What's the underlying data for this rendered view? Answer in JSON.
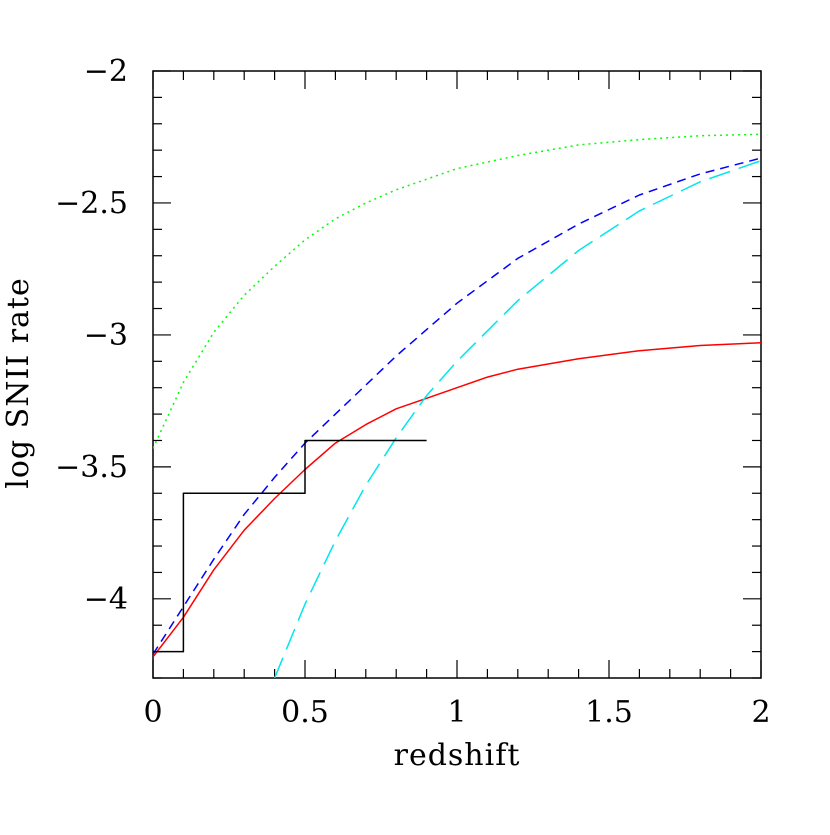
{
  "chart_data": {
    "type": "line",
    "title": "",
    "xlabel": "redshift",
    "ylabel": "log SNII rate",
    "xlim": [
      0,
      2
    ],
    "ylim": [
      -4.3,
      -2
    ],
    "xticks": [
      "0",
      "0.5",
      "1",
      "1.5",
      "2"
    ],
    "yticks": [
      "-2",
      "-2.5",
      "-3",
      "-3.5",
      "-4"
    ],
    "grid": false,
    "legend": "none",
    "series": [
      {
        "style": "solid",
        "color": "#ff0000",
        "x": [
          0,
          0.1,
          0.2,
          0.3,
          0.4,
          0.5,
          0.6,
          0.7,
          0.8,
          0.9,
          1.0,
          1.1,
          1.2,
          1.4,
          1.6,
          1.8,
          2.0
        ],
        "y": [
          -4.22,
          -4.07,
          -3.89,
          -3.74,
          -3.62,
          -3.51,
          -3.41,
          -3.34,
          -3.28,
          -3.24,
          -3.2,
          -3.16,
          -3.13,
          -3.09,
          -3.06,
          -3.04,
          -3.03
        ]
      },
      {
        "style": "dashed",
        "color": "#0000ff",
        "x": [
          0,
          0.1,
          0.2,
          0.3,
          0.4,
          0.5,
          0.6,
          0.7,
          0.8,
          0.9,
          1.0,
          1.2,
          1.4,
          1.6,
          1.8,
          2.0
        ],
        "y": [
          -4.21,
          -4.03,
          -3.85,
          -3.68,
          -3.54,
          -3.41,
          -3.3,
          -3.19,
          -3.08,
          -2.98,
          -2.88,
          -2.71,
          -2.58,
          -2.47,
          -2.39,
          -2.33
        ]
      },
      {
        "style": "dotted",
        "color": "#00ff00",
        "x": [
          0,
          0.1,
          0.2,
          0.3,
          0.4,
          0.5,
          0.6,
          0.7,
          0.8,
          0.9,
          1.0,
          1.2,
          1.4,
          1.6,
          1.8,
          2.0
        ],
        "y": [
          -3.43,
          -3.18,
          -2.99,
          -2.85,
          -2.74,
          -2.64,
          -2.56,
          -2.5,
          -2.45,
          -2.41,
          -2.37,
          -2.32,
          -2.28,
          -2.26,
          -2.245,
          -2.24
        ]
      },
      {
        "style": "long-dashed",
        "color": "#00e5ee",
        "x": [
          0.4,
          0.5,
          0.6,
          0.7,
          0.8,
          0.9,
          1.0,
          1.2,
          1.4,
          1.6,
          1.8,
          2.0
        ],
        "y": [
          -4.3,
          -4.02,
          -3.78,
          -3.57,
          -3.39,
          -3.23,
          -3.1,
          -2.87,
          -2.68,
          -2.53,
          -2.42,
          -2.34
        ]
      },
      {
        "style": "step",
        "color": "#000000",
        "x": [
          0,
          0.1,
          0.1,
          0.5,
          0.5,
          0.9
        ],
        "y": [
          -4.2,
          -4.2,
          -3.6,
          -3.6,
          -3.4,
          -3.4
        ]
      }
    ]
  }
}
